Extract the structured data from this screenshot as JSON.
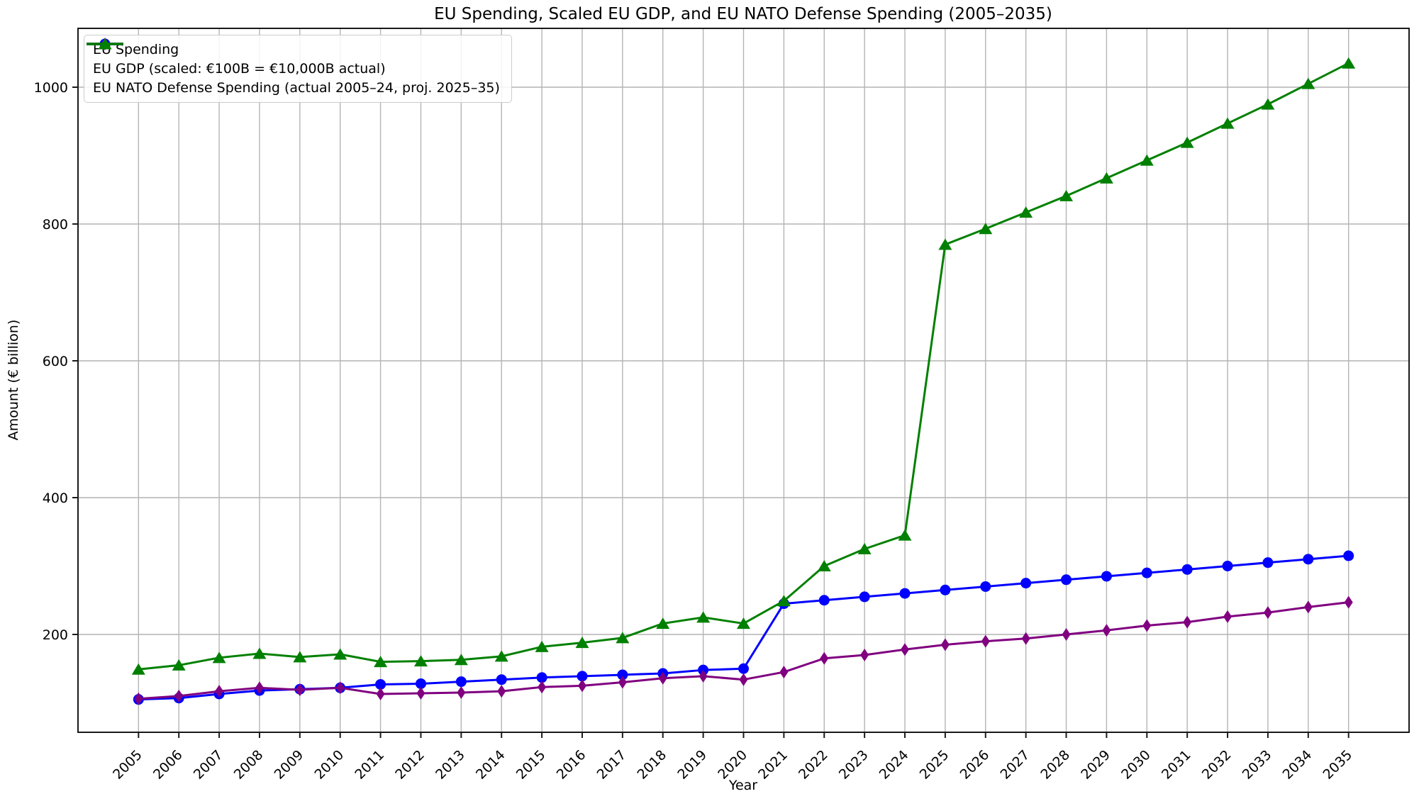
{
  "figure": {
    "title": "EU Spending, Scaled EU GDP, and EU NATO Defense Spending (2005–2035)",
    "xlabel": "Year",
    "ylabel": "Amount (€ billion)"
  },
  "chart_data": {
    "type": "line",
    "title": "EU Spending, Scaled EU GDP, and EU NATO Defense Spending (2005–2035)",
    "xlabel": "Year",
    "ylabel": "Amount (€ billion)",
    "grid": true,
    "legend_position": "upper left",
    "background": "#ffffff",
    "grid_color": "#b4b4b4",
    "x": [
      2005,
      2006,
      2007,
      2008,
      2009,
      2010,
      2011,
      2012,
      2013,
      2014,
      2015,
      2016,
      2017,
      2018,
      2019,
      2020,
      2021,
      2022,
      2023,
      2024,
      2025,
      2026,
      2027,
      2028,
      2029,
      2030,
      2031,
      2032,
      2033,
      2034,
      2035
    ],
    "xtick_labels": [
      "2005",
      "2006",
      "2007",
      "2008",
      "2009",
      "2010",
      "2011",
      "2012",
      "2013",
      "2014",
      "2015",
      "2016",
      "2017",
      "2018",
      "2019",
      "2020",
      "2021",
      "2022",
      "2023",
      "2024",
      "2025",
      "2026",
      "2027",
      "2028",
      "2029",
      "2030",
      "2031",
      "2032",
      "2033",
      "2034",
      "2035"
    ],
    "yticks": [
      200,
      400,
      600,
      800,
      1000
    ],
    "ylim": [
      57,
      1086
    ],
    "xlim": [
      2003.5,
      2036.5
    ],
    "series": [
      {
        "id": "eu-spending",
        "name": "EU Spending",
        "color": "#0000ff",
        "marker": "circle",
        "values": [
          105,
          107,
          113,
          118,
          120,
          122,
          127,
          128,
          131,
          134,
          137,
          139,
          141,
          143,
          148,
          150,
          245,
          250,
          255,
          260,
          265,
          270,
          275,
          280,
          285,
          290,
          295,
          300,
          305,
          310,
          315
        ]
      },
      {
        "id": "eu-gdp-scaled",
        "name": "EU GDP (scaled: €100B = €10,000B actual)",
        "color": "#800080",
        "marker": "diamond",
        "values": [
          106,
          110,
          117,
          122,
          119,
          122,
          113,
          114,
          115,
          117,
          123,
          125,
          130,
          136,
          139,
          134,
          145,
          165,
          170,
          178,
          185,
          190,
          194,
          200,
          206,
          213,
          218,
          226,
          232,
          240,
          247
        ]
      },
      {
        "id": "eu-nato-defense",
        "name": "EU NATO Defense Spending (actual 2005–24, proj. 2025–35)",
        "color": "#008000",
        "marker": "triangle",
        "values": [
          149,
          155,
          166,
          172,
          167,
          171,
          160,
          161,
          163,
          168,
          182,
          188,
          195,
          216,
          225,
          216,
          249,
          300,
          325,
          345,
          770,
          793,
          817,
          841,
          867,
          893,
          919,
          947,
          975,
          1005,
          1035
        ]
      }
    ]
  }
}
